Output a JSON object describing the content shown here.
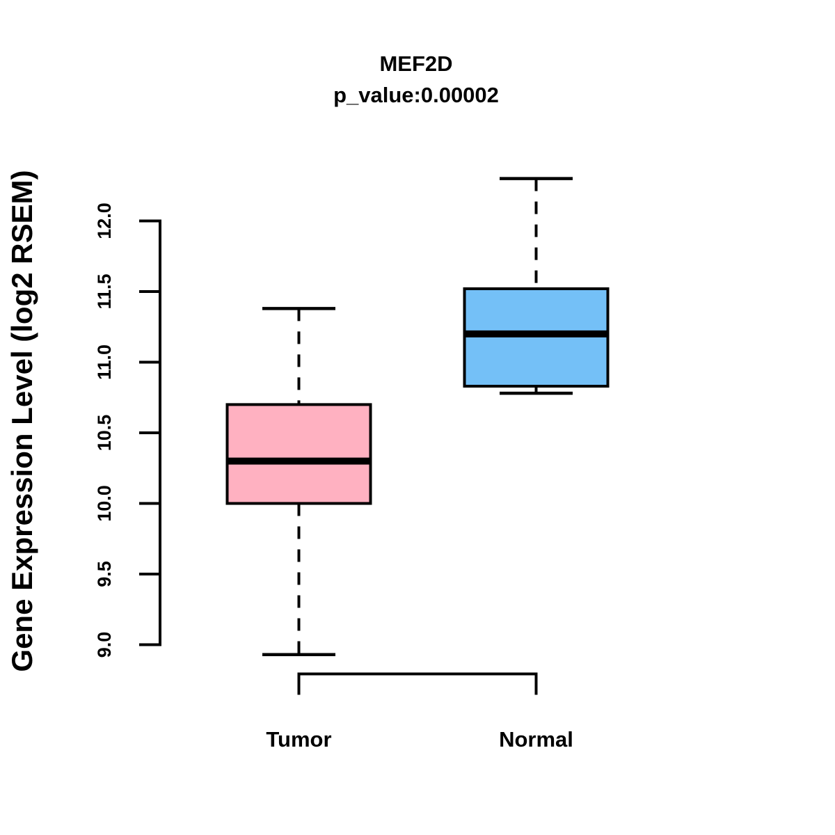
{
  "chart_data": {
    "type": "boxplot",
    "title": "MEF2D",
    "subtitle": "p_value:0.00002",
    "ylabel": "Gene Expression Level (log2 RSEM)",
    "xlabel": "",
    "categories": [
      "Tumor",
      "Normal"
    ],
    "yticks": [
      9.0,
      9.5,
      10.0,
      10.5,
      11.0,
      11.5,
      12.0
    ],
    "ytick_labels": [
      "9.0",
      "9.5",
      "10.0",
      "10.5",
      "11.0",
      "11.5",
      "12.0"
    ],
    "ylim": [
      8.85,
      12.35
    ],
    "grid": "off",
    "legend": "none",
    "series": [
      {
        "name": "Tumor",
        "color": "#FFB1C1",
        "lower_whisker": 8.93,
        "q1": 10.0,
        "median": 10.3,
        "q3": 10.7,
        "upper_whisker": 11.38
      },
      {
        "name": "Normal",
        "color": "#74C0F7",
        "lower_whisker": 10.78,
        "q1": 10.83,
        "median": 11.2,
        "q3": 11.52,
        "upper_whisker": 12.3
      }
    ],
    "stroke_color": "#000000",
    "background_color": "#FFFFFF"
  }
}
